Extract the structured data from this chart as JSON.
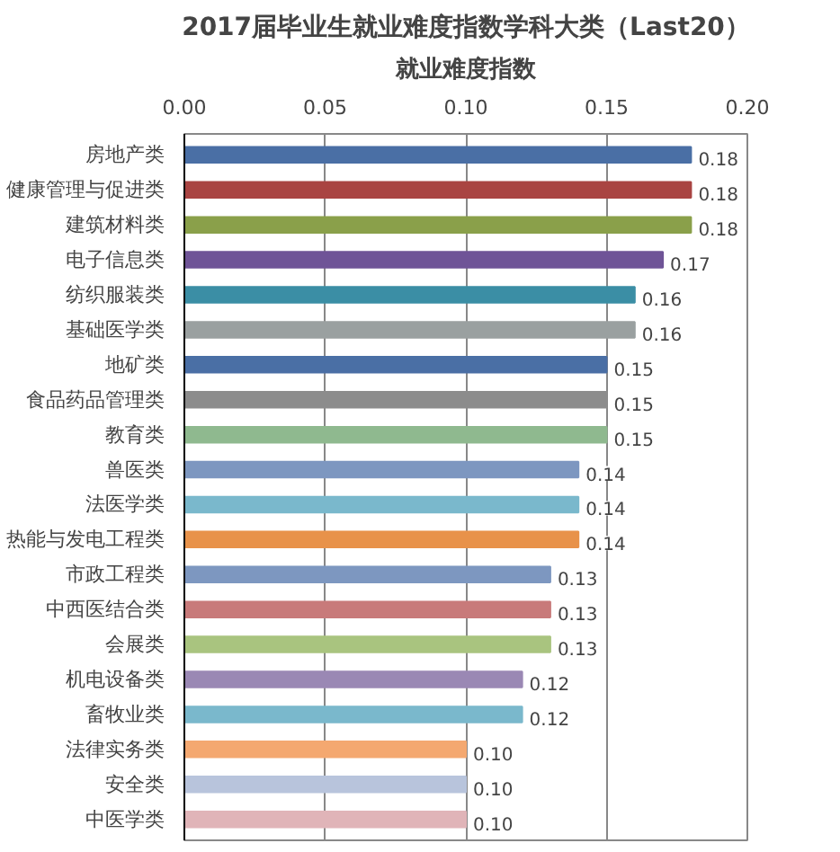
{
  "chart_data": {
    "type": "bar",
    "orientation": "horizontal",
    "title": "2017届毕业生就业难度指数学科大类（Last20）",
    "xlabel": "就业难度指数",
    "categories": [
      "房地产类",
      "健康管理与促进类",
      "建筑材料类",
      "电子信息类",
      "纺织服装类",
      "基础医学类",
      "地矿类",
      "食品药品管理类",
      "教育类",
      "兽医类",
      "法医学类",
      "热能与发电工程类",
      "市政工程类",
      "中西医结合类",
      "会展类",
      "机电设备类",
      "畜牧业类",
      "法律实务类",
      "安全类",
      "中医学类"
    ],
    "values": [
      0.18,
      0.18,
      0.18,
      0.17,
      0.16,
      0.16,
      0.15,
      0.15,
      0.15,
      0.14,
      0.14,
      0.14,
      0.13,
      0.13,
      0.13,
      0.12,
      0.12,
      0.1,
      0.1,
      0.1
    ],
    "colors": [
      "#4a6fa5",
      "#a94442",
      "#8aa04a",
      "#6f5497",
      "#3b8ea5",
      "#9aa0a0",
      "#4a6fa5",
      "#8c8c8c",
      "#8fb98f",
      "#7d97c0",
      "#7ab8cc",
      "#e8924a",
      "#7d97c0",
      "#c87a7a",
      "#a9c47f",
      "#9a88b4",
      "#7ab8cc",
      "#f4a870",
      "#b8c4dc",
      "#e0b4b8"
    ],
    "xlim": [
      0,
      0.2
    ],
    "xticks": [
      {
        "value": 0,
        "label": "0.00"
      },
      {
        "value": 0.05,
        "label": "0.05"
      },
      {
        "value": 0.1,
        "label": "0.10"
      },
      {
        "value": 0.15,
        "label": "0.15"
      },
      {
        "value": 0.2,
        "label": "0.20"
      }
    ],
    "value_labels": [
      "0.18",
      "0.18",
      "0.18",
      "0.17",
      "0.16",
      "0.16",
      "0.15",
      "0.15",
      "0.15",
      "0.14",
      "0.14",
      "0.14",
      "0.13",
      "0.13",
      "0.13",
      "0.12",
      "0.12",
      "0.10",
      "0.10",
      "0.10"
    ],
    "grid": "x"
  }
}
